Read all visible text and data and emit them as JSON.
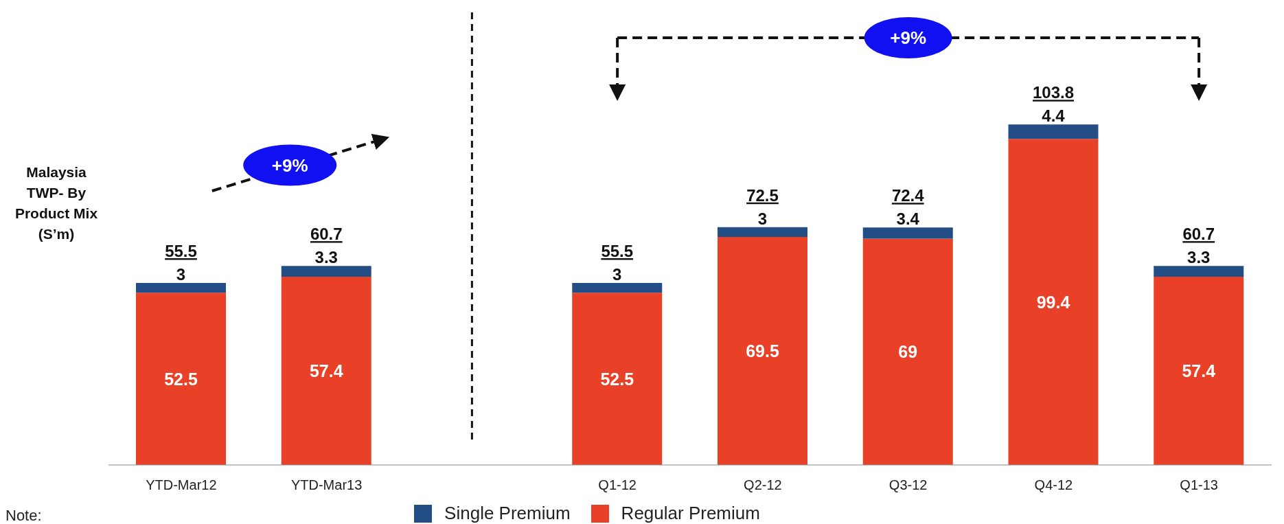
{
  "chart_data": {
    "type": "bar",
    "stacked": true,
    "ylabel": "Malaysia TWP- By Product Mix (S’m)",
    "categories": [
      "YTD-Mar12",
      "YTD-Mar13",
      null,
      "Q1-12",
      "Q2-12",
      "Q3-12",
      "Q4-12",
      "Q1-13"
    ],
    "series": [
      {
        "name": "Regular Premium",
        "color": "#e94128",
        "values": [
          52.5,
          57.4,
          null,
          52.5,
          69.5,
          69,
          99.4,
          57.4
        ]
      },
      {
        "name": "Single Premium",
        "color": "#234e85",
        "values": [
          3,
          3.3,
          null,
          3,
          3,
          3.4,
          4.4,
          3.3
        ]
      }
    ],
    "totals": [
      "55.5",
      "60.7",
      null,
      "55.5",
      "72.5",
      "72.4",
      "103.8",
      "60.7"
    ],
    "data_labels": true,
    "legend": "bottom",
    "ref_lines": [
      {
        "axis": "x",
        "value": null,
        "color": "#111111",
        "line_style": "dashed"
      }
    ],
    "annotations": [
      "+9%",
      "+9%",
      "Note:"
    ]
  }
}
